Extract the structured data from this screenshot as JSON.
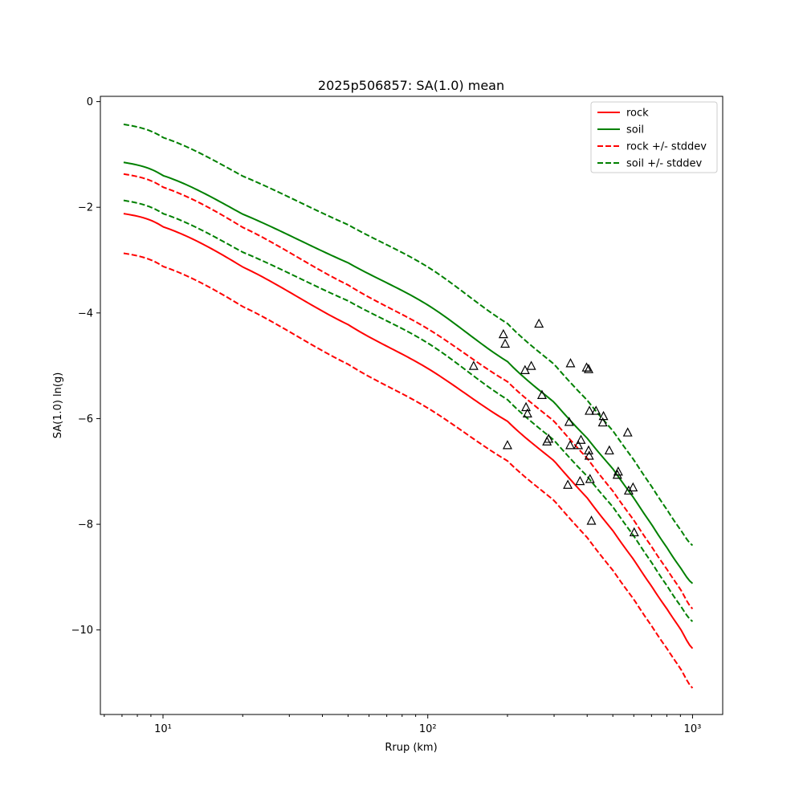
{
  "chart_data": {
    "type": "line",
    "title": "2025p506857: SA(1.0) mean",
    "xlabel": "Rrup (km)",
    "ylabel": "SA(1.0) ln(g)",
    "x_scale": "log",
    "xlim": [
      5.8,
      1300
    ],
    "ylim": [
      -11.6,
      0.1
    ],
    "x_ticks": [
      {
        "value": 10,
        "label": "10¹"
      },
      {
        "value": 100,
        "label": "10²"
      },
      {
        "value": 1000,
        "label": "10³"
      }
    ],
    "y_ticks": [
      0,
      -2,
      -4,
      -6,
      -8,
      -10
    ],
    "y_tick_labels": [
      "0",
      "−2",
      "−4",
      "−6",
      "−8",
      "−10"
    ],
    "grid": false,
    "legend": {
      "position": "top-right",
      "entries": [
        {
          "label": "rock",
          "color": "#ff0000",
          "style": "solid"
        },
        {
          "label": "soil",
          "color": "#008000",
          "style": "solid"
        },
        {
          "label": "rock +/- stddev",
          "color": "#ff0000",
          "style": "dashed"
        },
        {
          "label": "soil +/- stddev",
          "color": "#008000",
          "style": "dashed"
        }
      ]
    },
    "x": [
      7.1,
      10,
      20,
      50,
      100,
      200,
      300,
      400,
      500,
      600,
      700,
      800,
      900,
      1000
    ],
    "series": [
      {
        "name": "rock",
        "color": "#ff0000",
        "style": "solid",
        "values": [
          -2.12,
          -2.37,
          -3.13,
          -4.22,
          -5.05,
          -6.05,
          -6.8,
          -7.5,
          -8.12,
          -8.67,
          -9.17,
          -9.6,
          -9.98,
          -10.35
        ]
      },
      {
        "name": "rock +stddev",
        "color": "#ff0000",
        "style": "dashed",
        "values": [
          -1.37,
          -1.62,
          -2.38,
          -3.47,
          -4.3,
          -5.3,
          -6.05,
          -6.75,
          -7.37,
          -7.92,
          -8.42,
          -8.85,
          -9.23,
          -9.6
        ]
      },
      {
        "name": "rock -stddev",
        "color": "#ff0000",
        "style": "dashed",
        "values": [
          -2.87,
          -3.12,
          -3.88,
          -4.97,
          -5.8,
          -6.8,
          -7.55,
          -8.25,
          -8.87,
          -9.42,
          -9.92,
          -10.35,
          -10.73,
          -11.1
        ]
      },
      {
        "name": "soil",
        "color": "#008000",
        "style": "solid",
        "values": [
          -1.15,
          -1.4,
          -2.13,
          -3.05,
          -3.85,
          -4.92,
          -5.69,
          -6.37,
          -6.95,
          -7.5,
          -8.0,
          -8.44,
          -8.82,
          -9.12
        ]
      },
      {
        "name": "soil +stddev",
        "color": "#008000",
        "style": "dashed",
        "values": [
          -0.43,
          -0.68,
          -1.41,
          -2.33,
          -3.13,
          -4.2,
          -4.97,
          -5.65,
          -6.23,
          -6.78,
          -7.28,
          -7.72,
          -8.1,
          -8.4
        ]
      },
      {
        "name": "soil -stddev",
        "color": "#008000",
        "style": "dashed",
        "values": [
          -1.87,
          -2.12,
          -2.85,
          -3.77,
          -4.57,
          -5.64,
          -6.41,
          -7.09,
          -7.67,
          -8.22,
          -8.72,
          -9.16,
          -9.54,
          -9.84
        ]
      }
    ],
    "observations": {
      "marker": "triangle",
      "color": "#000000",
      "points": [
        [
          149,
          -5.0
        ],
        [
          193,
          -4.4
        ],
        [
          196,
          -4.58
        ],
        [
          200,
          -6.5
        ],
        [
          233,
          -5.08
        ],
        [
          235,
          -5.78
        ],
        [
          238,
          -5.9
        ],
        [
          246,
          -5.0
        ],
        [
          263,
          -4.2
        ],
        [
          270,
          -5.55
        ],
        [
          282,
          -6.43
        ],
        [
          286,
          -6.38
        ],
        [
          338,
          -7.25
        ],
        [
          342,
          -6.06
        ],
        [
          345,
          -6.5
        ],
        [
          346,
          -4.95
        ],
        [
          370,
          -6.5
        ],
        [
          376,
          -7.18
        ],
        [
          379,
          -6.4
        ],
        [
          398,
          -5.03
        ],
        [
          405,
          -5.06
        ],
        [
          405,
          -6.6
        ],
        [
          407,
          -6.7
        ],
        [
          408,
          -5.85
        ],
        [
          410,
          -7.14
        ],
        [
          415,
          -7.93
        ],
        [
          432,
          -5.85
        ],
        [
          458,
          -6.07
        ],
        [
          461,
          -5.95
        ],
        [
          485,
          -6.6
        ],
        [
          520,
          -7.06
        ],
        [
          524,
          -7.0
        ],
        [
          569,
          -6.26
        ],
        [
          574,
          -7.36
        ],
        [
          596,
          -7.3
        ],
        [
          602,
          -8.15
        ]
      ]
    }
  }
}
